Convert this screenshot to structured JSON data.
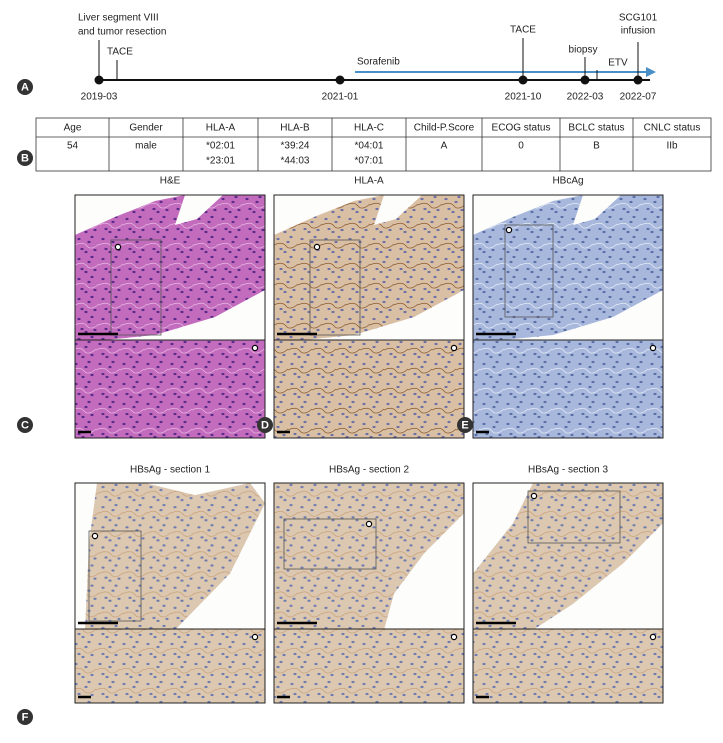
{
  "panel_labels": [
    "A",
    "B",
    "C",
    "D",
    "E",
    "F"
  ],
  "timeline": {
    "dates": [
      "2019-03",
      "2021-01",
      "2021-10",
      "2022-03",
      "2022-07"
    ],
    "events": [
      [
        "Liver segment VIII",
        "and tumor resection"
      ],
      [
        "TACE"
      ],
      [
        "Sorafenib"
      ],
      [
        "TACE"
      ],
      [
        "biopsy"
      ],
      [
        "ETV"
      ],
      [
        "SCG101",
        "infusion"
      ]
    ]
  },
  "table": {
    "headers": [
      "Age",
      "Gender",
      "HLA-A",
      "HLA-B",
      "HLA-C",
      "Child-P.Score",
      "ECOG status",
      "BCLC status",
      "CNLC status"
    ],
    "rows": [
      [
        "54",
        "male",
        [
          "*02:01",
          "*23:01"
        ],
        [
          "*39:24",
          "*44:03"
        ],
        [
          "*04:01",
          "*07:01"
        ],
        "A",
        "0",
        "B",
        "IIb"
      ]
    ]
  },
  "stains_top": [
    "H&E",
    "HLA-A",
    "HBcAg"
  ],
  "stains_bottom": [
    "HBsAg - section 1",
    "HBsAg - section 2",
    "HBsAg - section 3"
  ]
}
